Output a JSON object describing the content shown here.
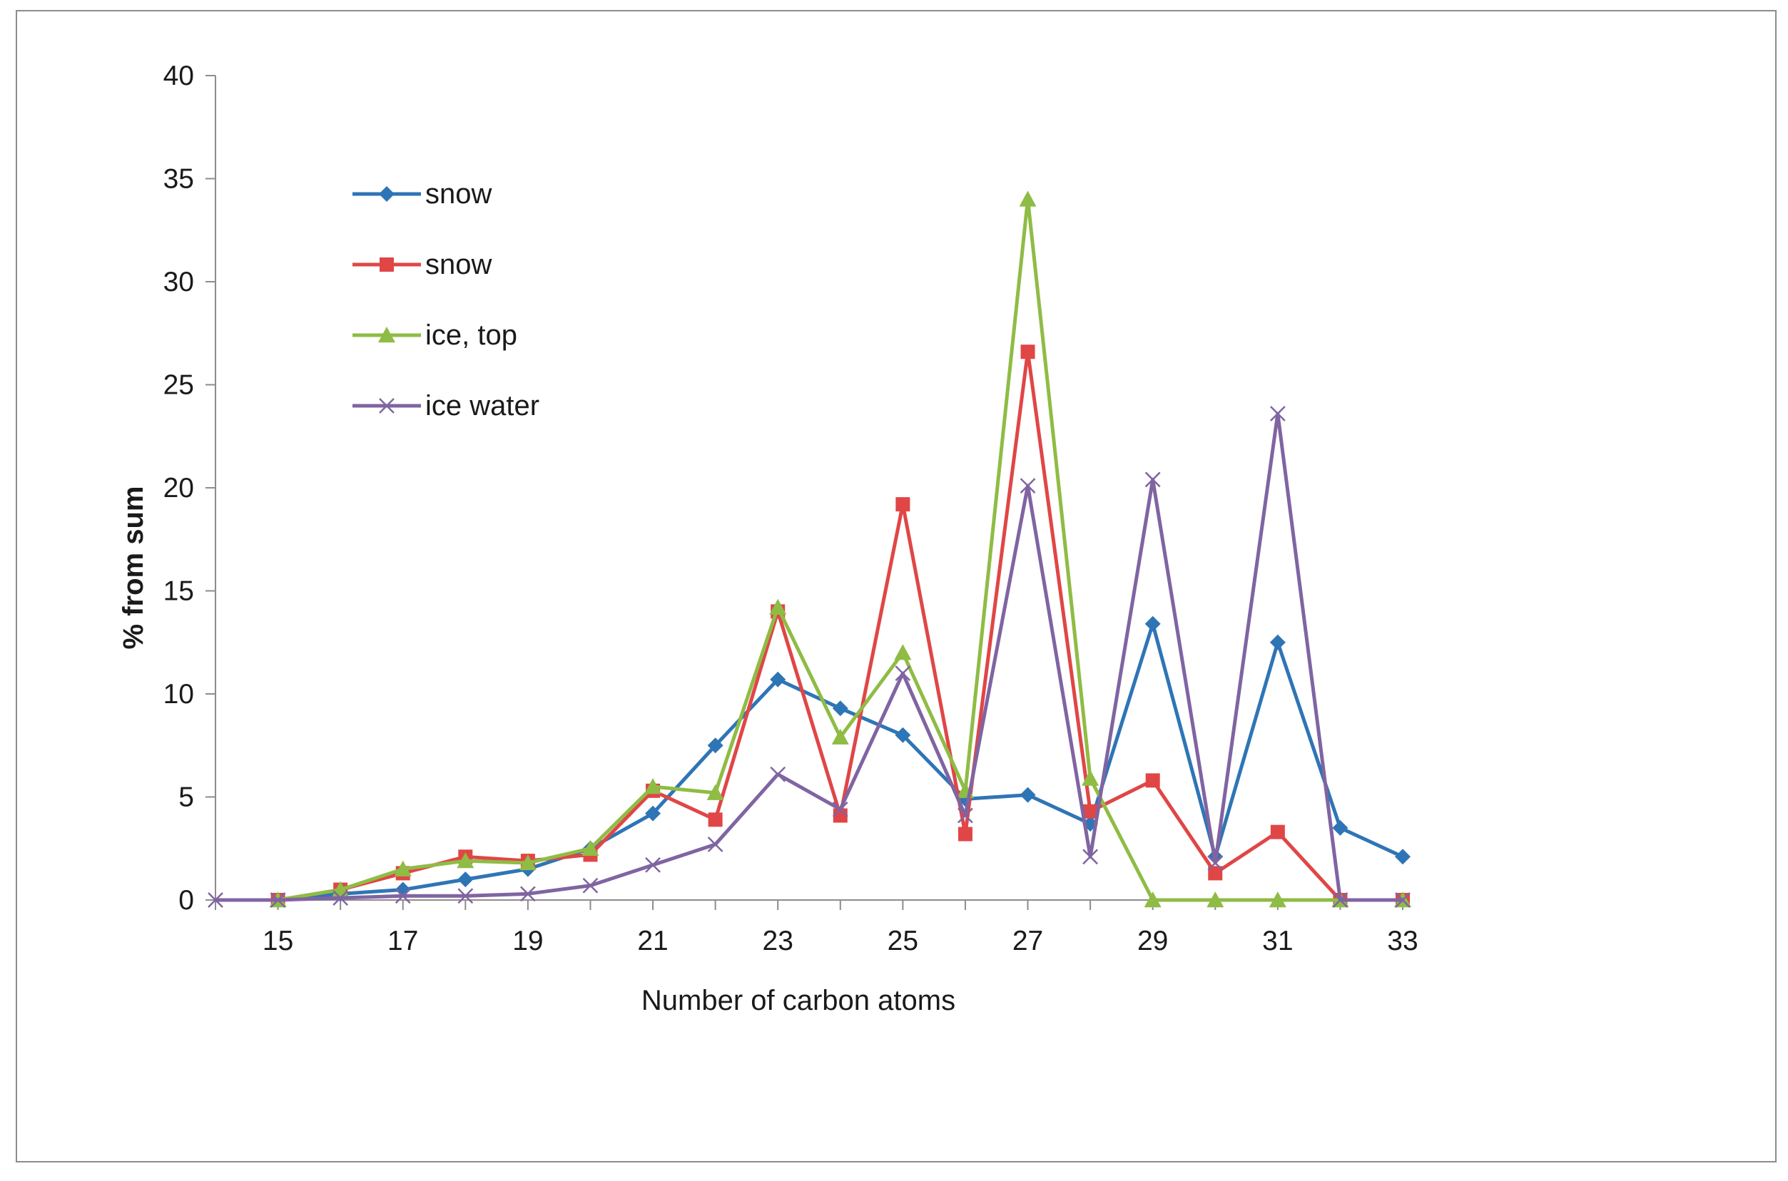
{
  "chart_data": {
    "type": "line",
    "title": "",
    "xlabel": "Number of carbon atoms",
    "ylabel": "% from sum",
    "ylim": [
      0,
      40
    ],
    "yticks": [
      0,
      5,
      10,
      15,
      20,
      25,
      30,
      35,
      40
    ],
    "xlim": [
      14,
      33
    ],
    "x": [
      14,
      15,
      16,
      17,
      18,
      19,
      20,
      21,
      22,
      23,
      24,
      25,
      26,
      27,
      28,
      29,
      30,
      31,
      32,
      33
    ],
    "xtick_labels": [
      "15",
      "17",
      "19",
      "21",
      "23",
      "25",
      "27",
      "29",
      "31",
      "33"
    ],
    "xtick_values": [
      15,
      17,
      19,
      21,
      23,
      25,
      27,
      29,
      31,
      33
    ],
    "legend_position": "top-left",
    "grid": false,
    "series": [
      {
        "name": "snow",
        "color": "#2e75b6",
        "marker": "diamond",
        "x": [
          15,
          16,
          17,
          18,
          19,
          20,
          21,
          22,
          23,
          24,
          25,
          26,
          27,
          28,
          29,
          30,
          31,
          32,
          33
        ],
        "values": [
          0,
          0.3,
          0.5,
          1.0,
          1.5,
          2.5,
          4.2,
          7.5,
          10.7,
          9.3,
          8.0,
          4.9,
          5.1,
          3.7,
          13.4,
          2.1,
          12.5,
          3.5,
          2.1
        ]
      },
      {
        "name": "snow",
        "color": "#e04646",
        "marker": "square",
        "x": [
          15,
          16,
          17,
          18,
          19,
          20,
          21,
          22,
          23,
          24,
          25,
          26,
          27,
          28,
          29,
          30,
          31,
          32,
          33
        ],
        "values": [
          0,
          0.5,
          1.3,
          2.1,
          1.9,
          2.2,
          5.3,
          3.9,
          14.0,
          4.1,
          19.2,
          3.2,
          26.6,
          4.3,
          5.8,
          1.3,
          3.3,
          0,
          0
        ]
      },
      {
        "name": "ice, top",
        "color": "#8fbc45",
        "marker": "triangle",
        "x": [
          15,
          16,
          17,
          18,
          19,
          20,
          21,
          22,
          23,
          24,
          25,
          26,
          27,
          28,
          29,
          30,
          31,
          32,
          33
        ],
        "values": [
          0,
          0.5,
          1.5,
          1.9,
          1.8,
          2.5,
          5.5,
          5.2,
          14.2,
          7.9,
          12.0,
          5.3,
          34.0,
          5.9,
          0,
          0,
          0,
          0,
          0
        ]
      },
      {
        "name": "ice water",
        "color": "#8064a2",
        "marker": "x",
        "x": [
          14,
          15,
          16,
          17,
          18,
          19,
          20,
          21,
          22,
          23,
          24,
          25,
          26,
          27,
          28,
          29,
          30,
          31,
          32,
          33
        ],
        "values": [
          0,
          0,
          0.1,
          0.2,
          0.2,
          0.3,
          0.7,
          1.7,
          2.7,
          6.1,
          4.4,
          11.0,
          4.1,
          20.1,
          2.1,
          20.4,
          1.8,
          23.6,
          0,
          0
        ]
      }
    ]
  }
}
